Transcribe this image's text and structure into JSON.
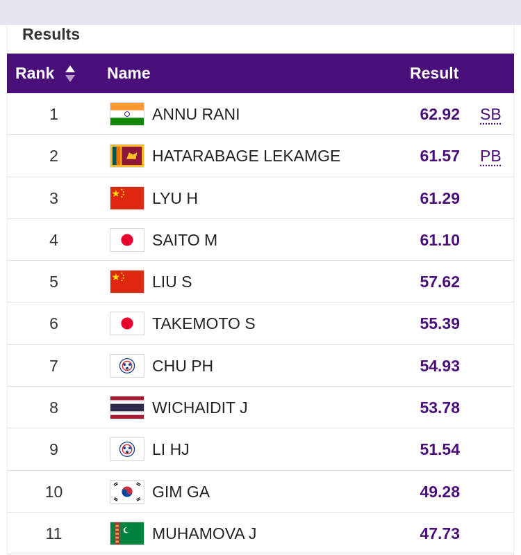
{
  "section_title": "Results",
  "table": {
    "headers": {
      "rank": "Rank",
      "name": "Name",
      "result": "Result"
    },
    "sort_icon": "sort-up-down-icon",
    "accent_color": "#4a0e7a",
    "rows": [
      {
        "rank": "1",
        "flag": "india-flag-icon",
        "name": "ANNU RANI",
        "result": "62.92",
        "note": "SB"
      },
      {
        "rank": "2",
        "flag": "sri-lanka-flag-icon",
        "name": "HATARABAGE LEKAMGE",
        "result": "61.57",
        "note": "PB"
      },
      {
        "rank": "3",
        "flag": "china-flag-icon",
        "name": "LYU H",
        "result": "61.29",
        "note": ""
      },
      {
        "rank": "4",
        "flag": "japan-flag-icon",
        "name": "SAITO M",
        "result": "61.10",
        "note": ""
      },
      {
        "rank": "5",
        "flag": "china-flag-icon",
        "name": "LIU S",
        "result": "57.62",
        "note": ""
      },
      {
        "rank": "6",
        "flag": "japan-flag-icon",
        "name": "TAKEMOTO S",
        "result": "55.39",
        "note": ""
      },
      {
        "rank": "7",
        "flag": "chinese-taipei-flag-icon",
        "name": "CHU PH",
        "result": "54.93",
        "note": ""
      },
      {
        "rank": "8",
        "flag": "thailand-flag-icon",
        "name": "WICHAIDIT J",
        "result": "53.78",
        "note": ""
      },
      {
        "rank": "9",
        "flag": "chinese-taipei-flag-icon",
        "name": "LI HJ",
        "result": "51.54",
        "note": ""
      },
      {
        "rank": "10",
        "flag": "korea-flag-icon",
        "name": "GIM GA",
        "result": "49.28",
        "note": ""
      },
      {
        "rank": "11",
        "flag": "turkmenistan-flag-icon",
        "name": "MUHAMOVA J",
        "result": "47.73",
        "note": ""
      }
    ]
  }
}
